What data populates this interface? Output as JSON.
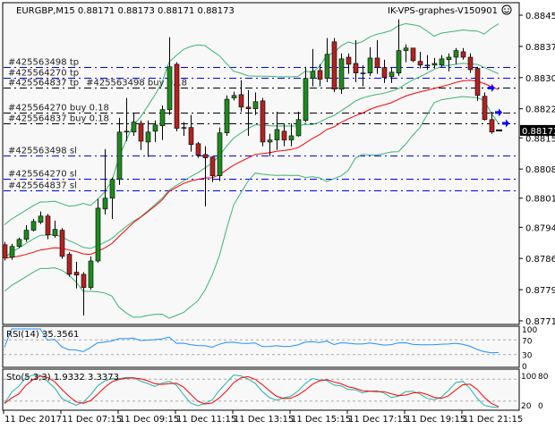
{
  "header": {
    "symbol_info": "EURGBP,M15  0.88171 0.88173 0.88171 0.88173",
    "ea_name": "IK-VPS-graphes-V150901",
    "ea_icon": "smiley-face-icon"
  },
  "colors": {
    "background": "#f8f8f8",
    "bull_candle": "#1f8a1f",
    "bear_candle": "#b22222",
    "bands": "#3cb371",
    "moving_average": "#ff0000",
    "rsi": "#1e90ff",
    "sto_main": "#20b2aa",
    "sto_signal": "#ff0000",
    "tp_sl_levels": "#0000ff",
    "order_levels": "#000000"
  },
  "chart_data": [
    {
      "type": "candlestick",
      "symbol": "EURGBP",
      "timeframe": "M15",
      "ylim": [
        0.87715,
        0.8845
      ],
      "y_ticks": [
        "0.88450",
        "0.88375",
        "0.88300",
        "0.88225",
        "0.88155",
        "0.88080",
        "0.88010",
        "0.87940",
        "0.87865",
        "0.87790",
        "0.87715"
      ],
      "x_ticks": [
        "11 Dec 2017",
        "11 Dec 07:15",
        "11 Dec 09:15",
        "11 Dec 11:15",
        "11 Dec 13:15",
        "11 Dec 15:15",
        "11 Dec 17:15",
        "11 Dec 19:15",
        "11 Dec 21:15"
      ],
      "current_price": "0.88173",
      "overlays": [
        "Bollinger Bands",
        "Moving Average"
      ],
      "ohlc": [
        [
          0.87898,
          0.87905,
          0.8786,
          0.87866
        ],
        [
          0.87868,
          0.879,
          0.87862,
          0.87894
        ],
        [
          0.87894,
          0.87915,
          0.8789,
          0.87911
        ],
        [
          0.87911,
          0.87945,
          0.87905,
          0.87933
        ],
        [
          0.87933,
          0.8796,
          0.8793,
          0.87954
        ],
        [
          0.87952,
          0.87978,
          0.87948,
          0.87967
        ],
        [
          0.87967,
          0.87972,
          0.87911,
          0.87922
        ],
        [
          0.8792,
          0.87956,
          0.87915,
          0.87935
        ],
        [
          0.87933,
          0.87938,
          0.87864,
          0.8787
        ],
        [
          0.87875,
          0.8788,
          0.87821,
          0.87827
        ],
        [
          0.87832,
          0.87857,
          0.87793,
          0.87825
        ],
        [
          0.87827,
          0.87832,
          0.87728,
          0.87795
        ],
        [
          0.87795,
          0.8787,
          0.8779,
          0.87859
        ],
        [
          0.87859,
          0.88008,
          0.87855,
          0.87986
        ],
        [
          0.87984,
          0.88128,
          0.87971,
          0.8801
        ],
        [
          0.8801,
          0.8806,
          0.8796,
          0.88055
        ],
        [
          0.88055,
          0.88203,
          0.88042,
          0.88169
        ],
        [
          0.88171,
          0.88251,
          0.88147,
          0.88171
        ],
        [
          0.88169,
          0.88214,
          0.8816,
          0.88193
        ],
        [
          0.8819,
          0.88197,
          0.88126,
          0.88147
        ],
        [
          0.88145,
          0.88197,
          0.88109,
          0.88169
        ],
        [
          0.88171,
          0.88197,
          0.88145,
          0.88186
        ],
        [
          0.88184,
          0.88233,
          0.8815,
          0.88223
        ],
        [
          0.88223,
          0.88397,
          0.8821,
          0.88326
        ],
        [
          0.88332,
          0.88337,
          0.88171,
          0.88178
        ],
        [
          0.8818,
          0.88193,
          0.8816,
          0.8818
        ],
        [
          0.8818,
          0.8821,
          0.88122,
          0.88139
        ],
        [
          0.88141,
          0.88145,
          0.88107,
          0.88113
        ],
        [
          0.88115,
          0.88135,
          0.8799,
          0.88107
        ],
        [
          0.88109,
          0.88111,
          0.88049,
          0.88064
        ],
        [
          0.88064,
          0.8818,
          0.88051,
          0.88167
        ],
        [
          0.88167,
          0.88257,
          0.8816,
          0.88248
        ],
        [
          0.88251,
          0.88266,
          0.88245,
          0.88257
        ],
        [
          0.88259,
          0.88294,
          0.88218,
          0.88229
        ],
        [
          0.88229,
          0.8827,
          0.8816,
          0.88225
        ],
        [
          0.88225,
          0.88264,
          0.8821,
          0.88242
        ],
        [
          0.88244,
          0.88251,
          0.88135,
          0.88145
        ],
        [
          0.88145,
          0.88165,
          0.88111,
          0.8815
        ],
        [
          0.8815,
          0.88218,
          0.88126,
          0.88175
        ],
        [
          0.88171,
          0.8819,
          0.88135,
          0.8815
        ],
        [
          0.8815,
          0.8819,
          0.88135,
          0.8816
        ],
        [
          0.8816,
          0.88218,
          0.88158,
          0.88199
        ],
        [
          0.88197,
          0.88326,
          0.88193,
          0.88298
        ],
        [
          0.88298,
          0.88369,
          0.88279,
          0.88315
        ],
        [
          0.88317,
          0.88332,
          0.88279,
          0.88296
        ],
        [
          0.88298,
          0.88395,
          0.88289,
          0.88356
        ],
        [
          0.88386,
          0.88395,
          0.88265,
          0.88272
        ],
        [
          0.88272,
          0.88358,
          0.88261,
          0.88345
        ],
        [
          0.88349,
          0.88358,
          0.88309,
          0.88332
        ],
        [
          0.88334,
          0.8839,
          0.88289,
          0.88311
        ],
        [
          0.88311,
          0.8833,
          0.88279,
          0.88311
        ],
        [
          0.88311,
          0.88373,
          0.88304,
          0.88347
        ],
        [
          0.88347,
          0.8839,
          0.88309,
          0.88324
        ],
        [
          0.88324,
          0.88343,
          0.88287,
          0.883
        ],
        [
          0.88302,
          0.88324,
          0.88287,
          0.88313
        ],
        [
          0.88311,
          0.8844,
          0.88304,
          0.88365
        ],
        [
          0.88365,
          0.8838,
          0.88337,
          0.88371
        ],
        [
          0.88371,
          0.88371,
          0.88337,
          0.88341
        ],
        [
          0.88339,
          0.88362,
          0.88322,
          0.8833
        ],
        [
          0.8833,
          0.88354,
          0.88319,
          0.8833
        ],
        [
          0.8833,
          0.88347,
          0.88322,
          0.88334
        ],
        [
          0.8833,
          0.88354,
          0.88326,
          0.88345
        ],
        [
          0.88343,
          0.88358,
          0.88315,
          0.88349
        ],
        [
          0.88349,
          0.88371,
          0.88332,
          0.88365
        ],
        [
          0.88362,
          0.88371,
          0.88343,
          0.88349
        ],
        [
          0.88349,
          0.88358,
          0.88311,
          0.88319
        ],
        [
          0.88322,
          0.88326,
          0.88244,
          0.88257
        ],
        [
          0.88255,
          0.88264,
          0.88197,
          0.88199
        ],
        [
          0.88199,
          0.88218,
          0.88165,
          0.88169
        ],
        [
          0.88171,
          0.88173,
          0.88171,
          0.88173
        ]
      ],
      "levels": [
        {
          "label": "#425563498 tp",
          "price": 0.88325,
          "kind": "tp"
        },
        {
          "label": "#425564270 tp",
          "price": 0.883,
          "kind": "tp"
        },
        {
          "label": "#425564837 tp",
          "price": 0.88275,
          "kind": "tp"
        },
        {
          "label": "#425563498 buy 0.18",
          "price": 0.88275,
          "kind": "order"
        },
        {
          "label": "#425564270 buy 0.18",
          "price": 0.88216,
          "kind": "order"
        },
        {
          "label": "#425564837 buy 0.18",
          "price": 0.8819,
          "kind": "order"
        },
        {
          "label": "#425563498 sl",
          "price": 0.88113,
          "kind": "sl"
        },
        {
          "label": "#425564270 sl",
          "price": 0.88057,
          "kind": "sl"
        },
        {
          "label": "#425564837 sl",
          "price": 0.88029,
          "kind": "sl"
        }
      ],
      "entry_arrows": [
        {
          "bar": 67,
          "price": 0.88275
        },
        {
          "bar": 68,
          "price": 0.88216
        },
        {
          "bar": 69,
          "price": 0.8819
        }
      ]
    },
    {
      "type": "line",
      "label": "RSI(14) 35.3561",
      "period": 14,
      "last_value": 35.3561,
      "ylim": [
        0,
        100
      ],
      "levels": [
        70,
        30
      ],
      "y_ticks": [
        "100",
        "70",
        "30",
        "0"
      ]
    },
    {
      "type": "line",
      "label": "Sto(5,3,3) 1.9332 3.3373",
      "params": [
        5,
        3,
        3
      ],
      "last_main": 1.9332,
      "last_signal": 3.3373,
      "ylim": [
        0,
        100
      ],
      "levels": [
        80,
        20
      ],
      "y_ticks": [
        "100",
        "80",
        "20",
        "0"
      ]
    }
  ]
}
